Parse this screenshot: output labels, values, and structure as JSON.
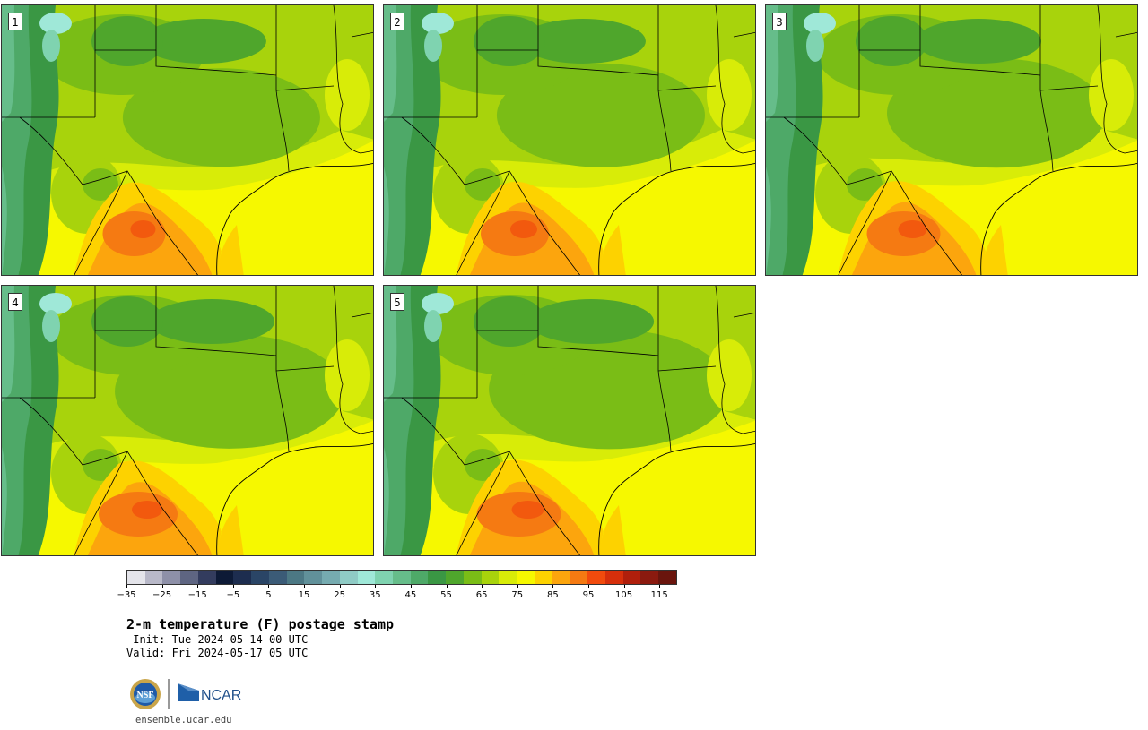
{
  "panels": [
    {
      "label": "1",
      "variant": 0
    },
    {
      "label": "2",
      "variant": 1
    },
    {
      "label": "3",
      "variant": 2
    },
    {
      "label": "4",
      "variant": 3
    },
    {
      "label": "5",
      "variant": 4
    }
  ],
  "colorbar": {
    "colors": [
      "#e4e4ea",
      "#b8b8c8",
      "#8e90a8",
      "#5e6582",
      "#333c5e",
      "#0d1a36",
      "#1d2d4f",
      "#2a4566",
      "#3b5b77",
      "#4c7884",
      "#61919a",
      "#76abb0",
      "#8fcbc5",
      "#9fe8d8",
      "#7fd3b0",
      "#66bd8a",
      "#4ea968",
      "#3a9744",
      "#4fa62c",
      "#7abd16",
      "#a8d30c",
      "#d8ec08",
      "#f6f800",
      "#fdd200",
      "#fca50d",
      "#f57a12",
      "#f14b0d",
      "#d62f0b",
      "#b01f0c",
      "#8b1a0f",
      "#6a150d"
    ],
    "tick_labels": [
      "−35",
      "−25",
      "−15",
      "−5",
      "5",
      "15",
      "25",
      "35",
      "45",
      "55",
      "65",
      "75",
      "85",
      "95",
      "105",
      "115"
    ]
  },
  "info": {
    "title": "2-m temperature (F) postage stamp",
    "init": " Init: Tue 2024-05-14 00 UTC",
    "valid": "Valid: Fri 2024-05-17 05 UTC"
  },
  "logos": {
    "nsf": "NSF",
    "ncar": "NCAR"
  },
  "site": "ensemble.ucar.edu"
}
